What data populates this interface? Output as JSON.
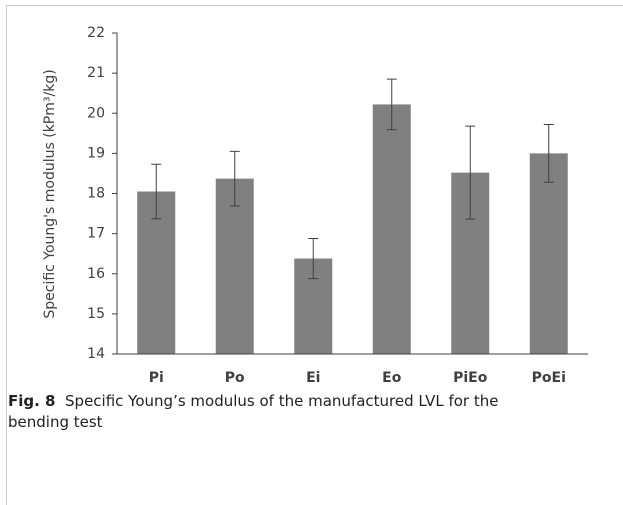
{
  "chart_data": {
    "type": "bar",
    "y_label": "Specific Young's modulus (kPm³/kg)",
    "categories": [
      "Pi",
      "Po",
      "Ei",
      "Eo",
      "PiEo",
      "PoEi"
    ],
    "values": [
      18.05,
      18.37,
      16.38,
      20.22,
      18.52,
      19.0
    ],
    "errors": [
      0.68,
      0.68,
      0.5,
      0.63,
      1.16,
      0.72
    ],
    "color": "#808080",
    "ylim": [
      14,
      22
    ],
    "yticks": [
      14,
      15,
      16,
      17,
      18,
      19,
      20,
      21,
      22
    ],
    "grid": false
  },
  "caption": {
    "label": "Fig. 8",
    "text": "Specific Young’s modulus of the manufactured LVL for the bending test"
  }
}
